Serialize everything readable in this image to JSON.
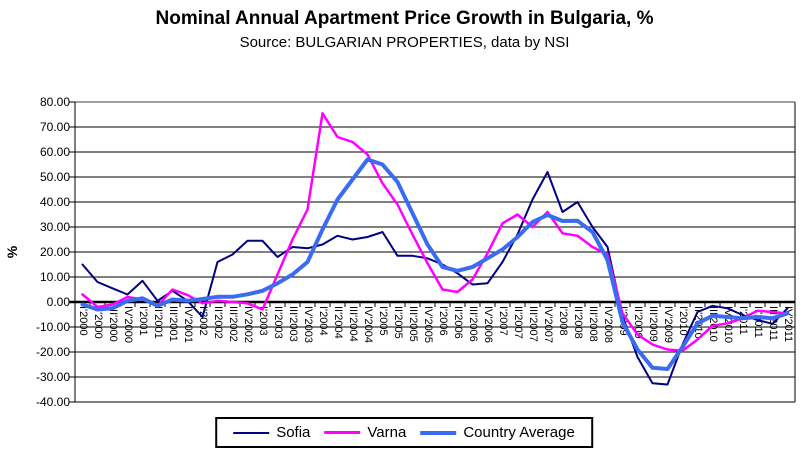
{
  "title": "Nominal Annual Apartment Price Growth in Bulgaria, %",
  "subtitle": "Source: BULGARIAN PROPERTIES, data by NSI",
  "chart_data": {
    "type": "line",
    "title": "Nominal Annual Apartment Price Growth in Bulgaria, %",
    "subtitle": "Source: BULGARIAN PROPERTIES, data by NSI",
    "xlabel": "",
    "ylabel": "%",
    "ylim": [
      -40,
      80
    ],
    "ytick_step": 10,
    "y_ticks": [
      "80.00",
      "70.00",
      "60.00",
      "50.00",
      "40.00",
      "30.00",
      "20.00",
      "10.00",
      "0.00",
      "-10.00",
      "-20.00",
      "-30.00",
      "-40.00"
    ],
    "grid": true,
    "legend_position": "bottom",
    "categories": [
      "I'2000",
      "II'2000",
      "III'2000",
      "IV'2000",
      "I'2001",
      "II'2001",
      "III'2001",
      "IV'2001",
      "I'2002",
      "II'2002",
      "III'2002",
      "IV'2002",
      "I'2003",
      "II'2003",
      "III'2003",
      "IV'2003",
      "I'2004",
      "II'2004",
      "III'2004",
      "IV'2004",
      "I'2005",
      "II'2005",
      "III'2005",
      "IV'2005",
      "I'2006",
      "II'2006",
      "III'2006",
      "IV'2006",
      "I'2007",
      "II'2007",
      "III'2007",
      "IV'2007",
      "I'2008",
      "II'2008",
      "III'2008",
      "IV'2008",
      "I'2009",
      "II'2009",
      "III'2009",
      "IV'2009",
      "I'2010",
      "II'2010",
      "III'2010",
      "IV'2010",
      "I'2011",
      "II'2011",
      "III'2011",
      "IV'2011"
    ],
    "series": [
      {
        "name": "Sofia",
        "color": "#000080",
        "line_width": 2,
        "values": [
          15,
          8,
          5.5,
          3,
          8.5,
          0.5,
          4.5,
          0.5,
          -6,
          16,
          19,
          24.5,
          24.5,
          18,
          22,
          21.5,
          23,
          26.5,
          25,
          26,
          28,
          18.5,
          18.5,
          17.5,
          15,
          11.5,
          7,
          7.5,
          16,
          27,
          41,
          52,
          36,
          40,
          30,
          22,
          -5.5,
          -22,
          -32.5,
          -33,
          -17,
          -4,
          -1.5,
          -2.5,
          -5.2,
          -7.2,
          -8.7,
          -2.5
        ]
      },
      {
        "name": "Varna",
        "color": "#FF00FF",
        "line_width": 2.5,
        "values": [
          3,
          -2,
          -1,
          2,
          1,
          -1.5,
          5,
          2.8,
          -0.5,
          0.5,
          0,
          -0.5,
          -3,
          11,
          25,
          37,
          75.5,
          66,
          64,
          59,
          47.5,
          39,
          27,
          15.5,
          5,
          4,
          9,
          19.5,
          31.5,
          35,
          30,
          36,
          27.5,
          26.5,
          22,
          19,
          -4.5,
          -13,
          -17,
          -19,
          -19.5,
          -15,
          -9.5,
          -8.5,
          -6.5,
          -3.5,
          -4,
          -4.6
        ]
      },
      {
        "name": "Country Average",
        "color": "#3A6BF0",
        "line_width": 4,
        "values": [
          -1,
          -3,
          -2.5,
          0.5,
          1.5,
          -1.5,
          1,
          0.5,
          1.2,
          2.1,
          2.1,
          3.1,
          4.5,
          7.5,
          11,
          16,
          29,
          41,
          49,
          57,
          55,
          48,
          35.5,
          23,
          14,
          12.5,
          14,
          17.5,
          21,
          26,
          32,
          34.8,
          32.4,
          32.5,
          28,
          16.8,
          -8,
          -19,
          -26.3,
          -26.8,
          -18,
          -8.5,
          -5.5,
          -6,
          -6.5,
          -6,
          -6.5,
          -4.5
        ]
      }
    ]
  }
}
